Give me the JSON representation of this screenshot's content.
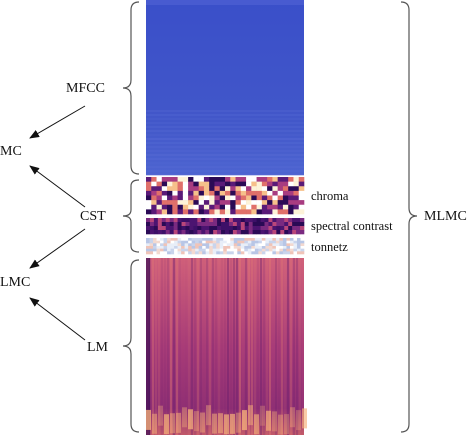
{
  "labels": {
    "mfcc": "MFCC",
    "mc": "MC",
    "cst": "CST",
    "lmc": "LMC",
    "lm": "LM",
    "chroma": "chroma",
    "spectral_contrast": "spectral contrast",
    "tonnetz": "tonnetz",
    "mlmc": "MLMC"
  },
  "colors": {
    "mfcc_base": "#3f51c8",
    "mfcc_light": "#5a6fd6",
    "lm_base": "#b8467a",
    "lm_dark": "#3a0c55",
    "lm_bright": "#f3a070",
    "bracket": "#555555",
    "arrow": "#111111"
  }
}
